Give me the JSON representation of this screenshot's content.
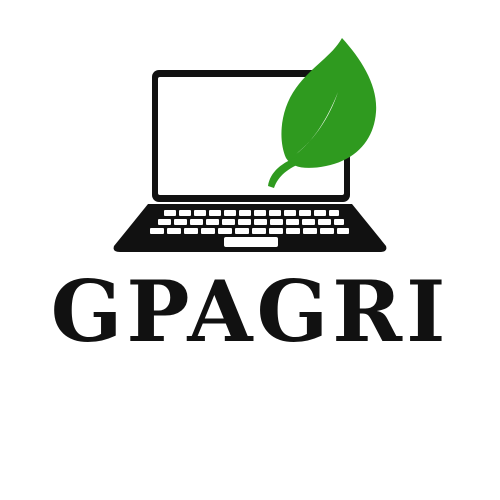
{
  "brand": {
    "name": "GPAGRI"
  },
  "colors": {
    "ink": "#111111",
    "leaf": "#2f9a1f",
    "leaf_highlight": "#ffffff",
    "background": "#ffffff"
  },
  "icons": [
    "laptop-icon",
    "leaf-icon"
  ]
}
